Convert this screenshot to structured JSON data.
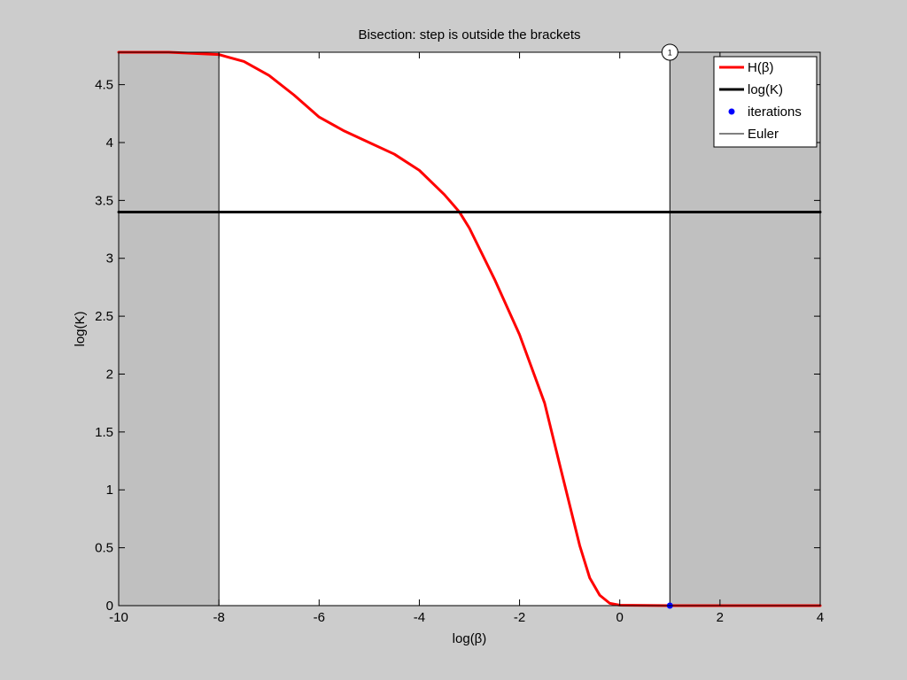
{
  "chart_data": {
    "type": "line",
    "title": "Bisection: step is outside the brackets",
    "xlabel": "log(β)",
    "ylabel": "log(K)",
    "xlim": [
      -10,
      4
    ],
    "ylim": [
      0,
      4.78
    ],
    "xticks": [
      -10,
      -8,
      -6,
      -4,
      -2,
      0,
      2,
      4
    ],
    "xtick_labels": [
      "-10",
      "-8",
      "-6",
      "-4",
      "-2",
      "0",
      "2",
      "4"
    ],
    "yticks": [
      0,
      0.5,
      1,
      1.5,
      2,
      2.5,
      3,
      3.5,
      4,
      4.5
    ],
    "ytick_labels": [
      "0",
      "0.5",
      "1",
      "1.5",
      "2",
      "2.5",
      "3",
      "3.5",
      "4",
      "4.5"
    ],
    "grid": false,
    "legend_position": "top-right",
    "shaded_regions": [
      {
        "x": [
          -10,
          -8
        ],
        "color": "#c0c0c0"
      },
      {
        "x": [
          1,
          4
        ],
        "color": "#c0c0c0"
      }
    ],
    "bracket_lines_x": [
      -8,
      1
    ],
    "series": [
      {
        "name": "H(β)",
        "color": "#ff0000",
        "style": "thick-line",
        "x": [
          -10,
          -9,
          -8,
          -7.5,
          -7,
          -6.5,
          -6,
          -5.5,
          -5,
          -4.5,
          -4,
          -3.5,
          -3.2,
          -3,
          -2.5,
          -2,
          -1.5,
          -1.2,
          -1,
          -0.8,
          -0.6,
          -0.4,
          -0.2,
          0,
          0.5,
          1,
          2,
          4
        ],
        "y": [
          4.78,
          4.78,
          4.76,
          4.7,
          4.58,
          4.41,
          4.22,
          4.1,
          4.0,
          3.9,
          3.76,
          3.55,
          3.4,
          3.26,
          2.82,
          2.34,
          1.75,
          1.22,
          0.87,
          0.52,
          0.24,
          0.09,
          0.02,
          0.004,
          0.002,
          0.0,
          0.0,
          0.0
        ]
      },
      {
        "name": "log(K)",
        "color": "#000000",
        "style": "thick-line",
        "x": [
          -10,
          4
        ],
        "y": [
          3.4,
          3.4
        ]
      },
      {
        "name": "iterations",
        "color": "#0000ff",
        "style": "markers",
        "x": [
          1
        ],
        "y": [
          0
        ]
      },
      {
        "name": "Euler",
        "color": "#000000",
        "style": "thin-line",
        "x": [
          -10,
          4
        ],
        "y": [
          0,
          0
        ]
      }
    ],
    "annotations": [
      {
        "text": "1",
        "x": 1,
        "y": 4.78
      }
    ]
  }
}
